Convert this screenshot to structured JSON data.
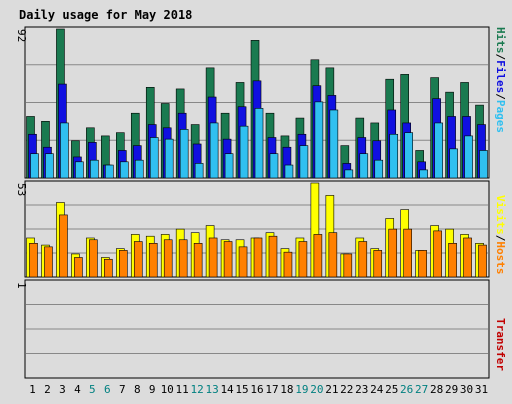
{
  "title": "Daily usage for May 2018",
  "days": [
    {
      "day": "1",
      "weekend": false
    },
    {
      "day": "2",
      "weekend": false
    },
    {
      "day": "3",
      "weekend": false
    },
    {
      "day": "4",
      "weekend": false
    },
    {
      "day": "5",
      "weekend": true
    },
    {
      "day": "6",
      "weekend": true
    },
    {
      "day": "7",
      "weekend": false
    },
    {
      "day": "8",
      "weekend": false
    },
    {
      "day": "9",
      "weekend": false
    },
    {
      "day": "10",
      "weekend": false
    },
    {
      "day": "11",
      "weekend": false
    },
    {
      "day": "12",
      "weekend": true
    },
    {
      "day": "13",
      "weekend": true
    },
    {
      "day": "14",
      "weekend": false
    },
    {
      "day": "15",
      "weekend": false
    },
    {
      "day": "16",
      "weekend": false
    },
    {
      "day": "17",
      "weekend": false
    },
    {
      "day": "18",
      "weekend": false
    },
    {
      "day": "19",
      "weekend": true
    },
    {
      "day": "20",
      "weekend": true
    },
    {
      "day": "21",
      "weekend": false
    },
    {
      "day": "22",
      "weekend": false
    },
    {
      "day": "23",
      "weekend": false
    },
    {
      "day": "24",
      "weekend": false
    },
    {
      "day": "25",
      "weekend": false
    },
    {
      "day": "26",
      "weekend": true
    },
    {
      "day": "27",
      "weekend": true
    },
    {
      "day": "28",
      "weekend": false
    },
    {
      "day": "29",
      "weekend": false
    },
    {
      "day": "30",
      "weekend": false
    },
    {
      "day": "31",
      "weekend": false
    }
  ],
  "colors": {
    "hits": "#1a7a50",
    "files": "#1010e0",
    "pages": "#30c0f0",
    "visits": "#ffff00",
    "hosts": "#ff8000",
    "transfer": "#c00000",
    "title": "#0000a0",
    "weekend_label": "#008080",
    "background": "#dcdcdc",
    "grid": "#888888"
  },
  "chart_data": [
    {
      "type": "bar",
      "panel": "hits_files_pages",
      "axis_max_label": "92",
      "ylim": [
        0,
        92
      ],
      "legend": [
        {
          "label": "Hits",
          "color": "#1a7a50"
        },
        {
          "label": "/",
          "color": "#000000"
        },
        {
          "label": "Files",
          "color": "#1010e0"
        },
        {
          "label": "/",
          "color": "#000000"
        },
        {
          "label": "Pages",
          "color": "#30c0f0"
        }
      ],
      "categories": [
        "1",
        "2",
        "3",
        "4",
        "5",
        "6",
        "7",
        "8",
        "9",
        "10",
        "11",
        "12",
        "13",
        "14",
        "15",
        "16",
        "17",
        "18",
        "19",
        "20",
        "21",
        "22",
        "23",
        "24",
        "25",
        "26",
        "27",
        "28",
        "29",
        "30",
        "31"
      ],
      "series": [
        {
          "name": "Hits",
          "values": [
            38,
            35,
            92,
            23,
            31,
            26,
            28,
            40,
            56,
            46,
            55,
            33,
            68,
            40,
            59,
            85,
            40,
            26,
            37,
            73,
            68,
            20,
            37,
            34,
            61,
            64,
            17,
            62,
            53,
            59,
            45
          ]
        },
        {
          "name": "Files",
          "values": [
            27,
            19,
            58,
            13,
            22,
            8,
            17,
            20,
            33,
            31,
            40,
            21,
            50,
            24,
            44,
            60,
            25,
            19,
            27,
            57,
            51,
            9,
            25,
            23,
            42,
            34,
            10,
            49,
            38,
            38,
            33
          ]
        },
        {
          "name": "Pages",
          "values": [
            15,
            15,
            34,
            10,
            11,
            8,
            10,
            11,
            25,
            24,
            30,
            9,
            34,
            15,
            32,
            43,
            15,
            8,
            20,
            47,
            42,
            5,
            15,
            11,
            27,
            28,
            5,
            34,
            18,
            26,
            17
          ]
        }
      ]
    },
    {
      "type": "bar",
      "panel": "visits_hosts",
      "axis_max_label": "53",
      "ylim": [
        0,
        53
      ],
      "legend": [
        {
          "label": "Visits",
          "color": "#ffff00"
        },
        {
          "label": "/",
          "color": "#000000"
        },
        {
          "label": "Hosts",
          "color": "#ff8000"
        }
      ],
      "categories": [
        "1",
        "2",
        "3",
        "4",
        "5",
        "6",
        "7",
        "8",
        "9",
        "10",
        "11",
        "12",
        "13",
        "14",
        "15",
        "16",
        "17",
        "18",
        "19",
        "20",
        "21",
        "22",
        "23",
        "24",
        "25",
        "26",
        "27",
        "28",
        "29",
        "30",
        "31"
      ],
      "series": [
        {
          "name": "Visits",
          "values": [
            22,
            18,
            42,
            13,
            22,
            11,
            16,
            24,
            23,
            24,
            27,
            25,
            29,
            21,
            21,
            22,
            25,
            16,
            22,
            53,
            46,
            13,
            22,
            16,
            33,
            38,
            15,
            29,
            27,
            24,
            19
          ]
        },
        {
          "name": "Hosts",
          "values": [
            19,
            17,
            35,
            11,
            21,
            10,
            15,
            20,
            19,
            21,
            21,
            19,
            22,
            20,
            17,
            22,
            23,
            14,
            20,
            24,
            25,
            13,
            20,
            15,
            27,
            27,
            15,
            26,
            19,
            22,
            18
          ]
        }
      ]
    },
    {
      "type": "bar",
      "panel": "transfer",
      "axis_max_label": "1",
      "ylim": [
        0,
        1
      ],
      "legend": [
        {
          "label": "Transfer",
          "color": "#c00000"
        }
      ],
      "categories": [
        "1",
        "2",
        "3",
        "4",
        "5",
        "6",
        "7",
        "8",
        "9",
        "10",
        "11",
        "12",
        "13",
        "14",
        "15",
        "16",
        "17",
        "18",
        "19",
        "20",
        "21",
        "22",
        "23",
        "24",
        "25",
        "26",
        "27",
        "28",
        "29",
        "30",
        "31"
      ],
      "series": [
        {
          "name": "Transfer",
          "values": [
            0,
            0,
            0,
            0,
            0,
            0,
            0,
            0,
            0,
            0,
            0,
            0,
            0,
            0,
            0,
            0,
            0,
            0,
            0,
            0,
            0,
            0,
            0,
            0,
            0,
            0,
            0,
            0,
            0,
            0,
            0
          ]
        }
      ]
    }
  ]
}
